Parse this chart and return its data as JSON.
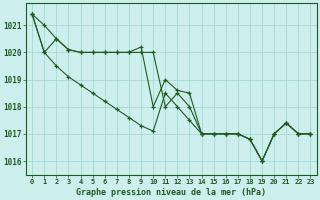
{
  "title": "Graphe pression niveau de la mer (hPa)",
  "background_color": "#cdf0ee",
  "grid_color": "#9ed4cc",
  "line_color": "#1e5c1e",
  "ylim": [
    1015.5,
    1021.8
  ],
  "xlim": [
    -0.5,
    23.5
  ],
  "yticks": [
    1016,
    1017,
    1018,
    1019,
    1020,
    1021
  ],
  "xticks": [
    0,
    1,
    2,
    3,
    4,
    5,
    6,
    7,
    8,
    9,
    10,
    11,
    12,
    13,
    14,
    15,
    16,
    17,
    18,
    19,
    20,
    21,
    22,
    23
  ],
  "series": [
    [
      1021.4,
      1021.0,
      1020.5,
      1020.1,
      1020.0,
      1020.0,
      1020.0,
      1020.0,
      1020.0,
      1020.2,
      1018.0,
      1019.0,
      1018.6,
      1018.5,
      1017.0,
      1017.0,
      1017.0,
      1017.0,
      1016.8,
      1016.0,
      1017.0,
      1017.4,
      1017.0,
      1017.0
    ],
    [
      1021.4,
      1020.0,
      1020.5,
      1020.1,
      1020.0,
      1020.0,
      1020.0,
      1020.0,
      1020.0,
      1020.0,
      1020.0,
      1018.0,
      1018.5,
      1018.0,
      1017.0,
      1017.0,
      1017.0,
      1017.0,
      1016.8,
      1016.0,
      1017.0,
      1017.4,
      1017.0,
      1017.0
    ],
    [
      1021.4,
      1020.0,
      1019.5,
      1019.1,
      1018.8,
      1018.5,
      1018.2,
      1017.9,
      1017.6,
      1017.3,
      1017.1,
      1018.5,
      1018.0,
      1017.5,
      1017.0,
      1017.0,
      1017.0,
      1017.0,
      1016.8,
      1016.0,
      1017.0,
      1017.4,
      1017.0,
      1017.0
    ]
  ]
}
